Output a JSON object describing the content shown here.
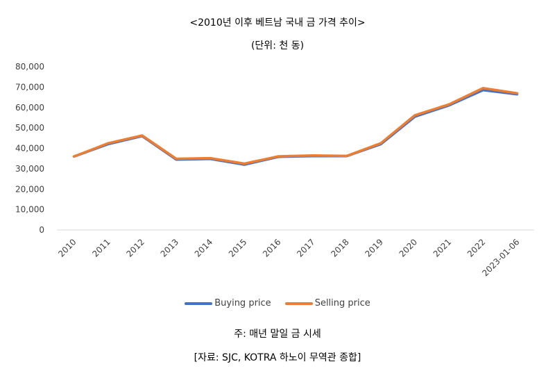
{
  "chart_data": {
    "type": "line",
    "title": "<2010년 이후 베트남 국내 금 가격 추이>",
    "subtitle": "(단위: 천 동)",
    "categories": [
      "2010",
      "2011",
      "2012",
      "2013",
      "2014",
      "2015",
      "2016",
      "2017",
      "2018",
      "2019",
      "2020",
      "2021",
      "2022",
      "2023-01-06"
    ],
    "series": [
      {
        "name": "Buying price",
        "color": "#4472C4",
        "values": [
          36000,
          42000,
          46000,
          34500,
          34800,
          32000,
          35800,
          36200,
          36200,
          42000,
          55500,
          61000,
          68500,
          66500
        ]
      },
      {
        "name": "Selling price",
        "color": "#ED7D31",
        "values": [
          36000,
          42500,
          46300,
          34900,
          35200,
          32500,
          36100,
          36500,
          36300,
          42500,
          56200,
          61500,
          69500,
          67000
        ]
      }
    ],
    "ylim": [
      0,
      80000
    ],
    "yticks": [
      "0",
      "10,000",
      "20,000",
      "30,000",
      "40,000",
      "50,000",
      "60,000",
      "70,000",
      "80,000"
    ],
    "grid": false,
    "legend": "bottom"
  },
  "notes": {
    "line1": "주: 매년 말일 금 시세",
    "line2": "[자료: SJC, KOTRA 하노이 무역관 종합]"
  }
}
